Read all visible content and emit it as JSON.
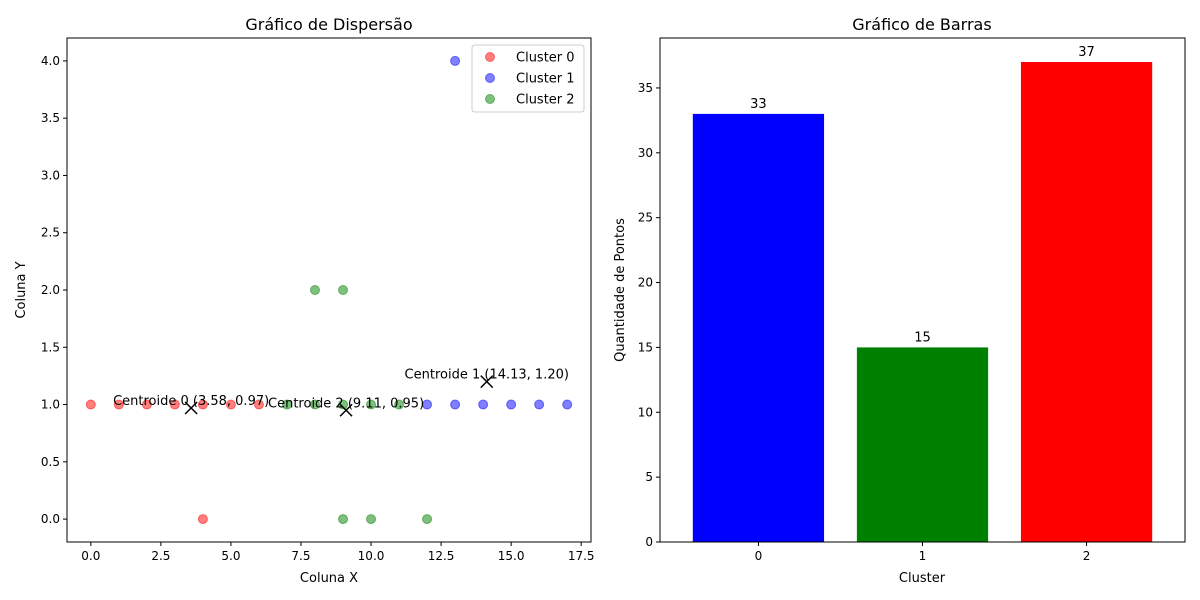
{
  "chart_data": [
    {
      "type": "scatter",
      "title": "Gráfico de Dispersão",
      "xlabel": "Coluna X",
      "ylabel": "Coluna Y",
      "xlim": [
        -0.85,
        17.85
      ],
      "ylim": [
        -0.2,
        4.2
      ],
      "xticks": [
        0,
        2.5,
        5,
        7.5,
        10,
        12.5,
        15,
        17.5
      ],
      "xtick_labels": [
        "0.0",
        "2.5",
        "5.0",
        "7.5",
        "10.0",
        "12.5",
        "15.0",
        "17.5"
      ],
      "yticks": [
        0,
        0.5,
        1,
        1.5,
        2,
        2.5,
        3,
        3.5,
        4
      ],
      "ytick_labels": [
        "0.0",
        "0.5",
        "1.0",
        "1.5",
        "2.0",
        "2.5",
        "3.0",
        "3.5",
        "4.0"
      ],
      "grid": false,
      "legend_position": "top-right",
      "series": [
        {
          "name": "Cluster 0",
          "color": "#ff0000",
          "points": [
            [
              0,
              1
            ],
            [
              1,
              1
            ],
            [
              2,
              1
            ],
            [
              3,
              1
            ],
            [
              4,
              1
            ],
            [
              5,
              1
            ],
            [
              6,
              1
            ],
            [
              4,
              0
            ]
          ]
        },
        {
          "name": "Cluster 1",
          "color": "#0000ff",
          "points": [
            [
              12,
              1
            ],
            [
              13,
              1
            ],
            [
              14,
              1
            ],
            [
              15,
              1
            ],
            [
              16,
              1
            ],
            [
              17,
              1
            ],
            [
              13,
              4
            ]
          ]
        },
        {
          "name": "Cluster 2",
          "color": "#008000",
          "points": [
            [
              7,
              1
            ],
            [
              8,
              1
            ],
            [
              9,
              1
            ],
            [
              10,
              1
            ],
            [
              11,
              1
            ],
            [
              8,
              2
            ],
            [
              9,
              2
            ],
            [
              9,
              0
            ],
            [
              10,
              0
            ],
            [
              12,
              0
            ]
          ]
        }
      ],
      "centroids": [
        {
          "x": 3.58,
          "y": 0.97,
          "label": "Centroide 0 (3.58, 0.97)"
        },
        {
          "x": 14.13,
          "y": 1.2,
          "label": "Centroide 1 (14.13, 1.20)"
        },
        {
          "x": 9.11,
          "y": 0.95,
          "label": "Centroide 2 (9.11, 0.95)"
        }
      ]
    },
    {
      "type": "bar",
      "title": "Gráfico de Barras",
      "xlabel": "Cluster",
      "ylabel": "Quantidade de Pontos",
      "categories": [
        "0",
        "1",
        "2"
      ],
      "values": [
        33,
        15,
        37
      ],
      "colors": [
        "#0000ff",
        "#008000",
        "#ff0000"
      ],
      "value_labels": [
        "33",
        "15",
        "37"
      ],
      "ylim": [
        0,
        38.85
      ],
      "yticks": [
        0,
        5,
        10,
        15,
        20,
        25,
        30,
        35
      ],
      "ytick_labels": [
        "0",
        "5",
        "10",
        "15",
        "20",
        "25",
        "30",
        "35"
      ],
      "grid": false
    }
  ]
}
